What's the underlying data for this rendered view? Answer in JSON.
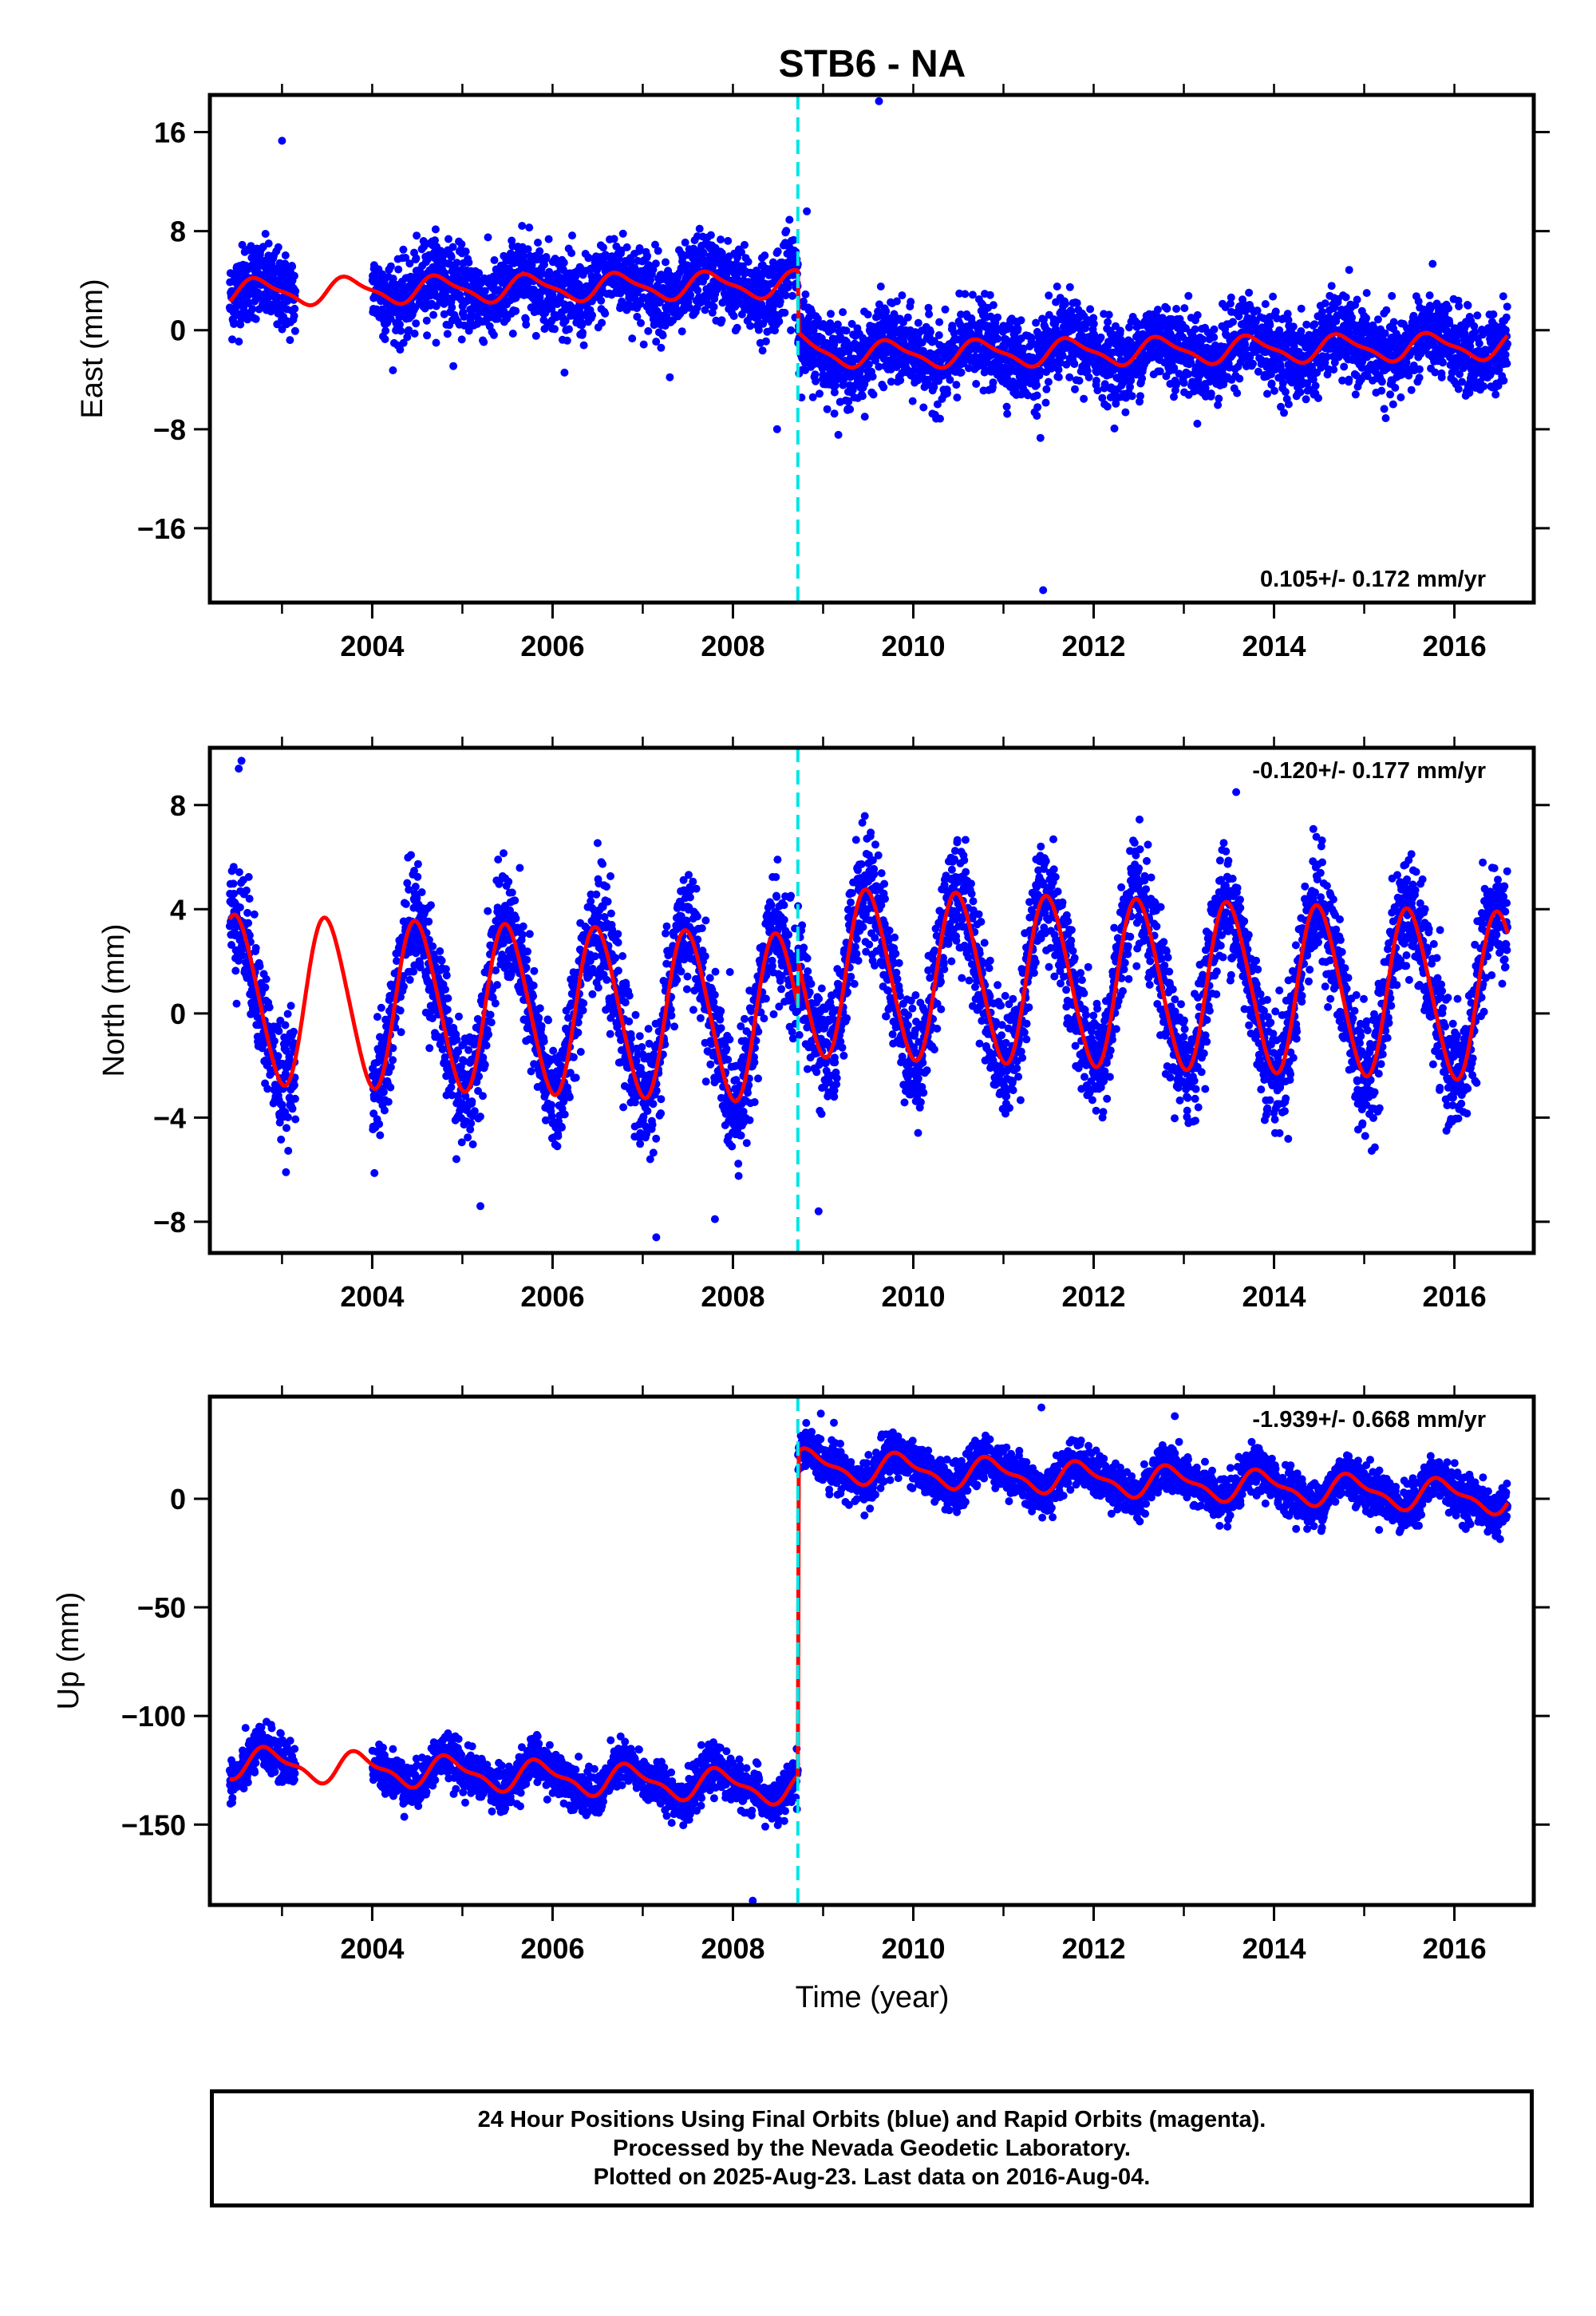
{
  "title": "STB6 - NA",
  "xlabel": "Time (year)",
  "caption": {
    "line1": "24 Hour Positions Using Final Orbits (blue) and Rapid Orbits (magenta).",
    "line2": "Processed by the Nevada Geodetic Laboratory.",
    "line3": "Plotted on 2025-Aug-23. Last data on 2016-Aug-04."
  },
  "colors": {
    "data": "#0000ff",
    "model": "#ff0000",
    "step_line": "#00e5e5",
    "axis": "#000000"
  },
  "chart_data": [
    {
      "type": "scatter",
      "component": "east",
      "ylabel": "East (mm)",
      "rate_text": "0.105+/- 0.172 mm/yr",
      "rate_position": "bottom-right",
      "xlim": [
        2002.2,
        2016.88
      ],
      "ylim": [
        -22,
        19
      ],
      "yticks": [
        -16,
        -8,
        0,
        8,
        16
      ],
      "xticks": [
        2004,
        2006,
        2008,
        2010,
        2012,
        2014,
        2016
      ],
      "x_range": [
        2002.42,
        2016.59
      ],
      "data_gap": [
        2003.15,
        2004.0
      ],
      "step_epoch": 2008.72,
      "model": {
        "pre_offset": 3.8,
        "post_offset": -2.0,
        "rate": 0.105,
        "annual_amp": 1.0,
        "annual_phase": 0.5,
        "semiannual_amp": 0.3,
        "step_decay": 0.8
      },
      "noise_sigma": 1.6,
      "outliers": [
        [
          2003.0,
          15.3
        ],
        [
          2009.62,
          18.5
        ],
        [
          2008.82,
          9.6
        ],
        [
          2011.44,
          -21.0
        ],
        [
          2011.41,
          -8.7
        ],
        [
          2008.49,
          -8.0
        ],
        [
          2004.12,
          -0.5
        ],
        [
          2004.9,
          -2.9
        ],
        [
          2007.3,
          -3.8
        ]
      ]
    },
    {
      "type": "scatter",
      "component": "north",
      "ylabel": "North (mm)",
      "rate_text": "-0.120+/- 0.177 mm/yr",
      "rate_position": "top-right",
      "xlim": [
        2002.2,
        2016.88
      ],
      "ylim": [
        -9.2,
        10.2
      ],
      "yticks": [
        -8,
        -4,
        0,
        4,
        8
      ],
      "xticks": [
        2004,
        2006,
        2008,
        2010,
        2012,
        2014,
        2016
      ],
      "x_range": [
        2002.42,
        2016.59
      ],
      "data_gap": [
        2003.15,
        2004.0
      ],
      "step_epoch": 2008.72,
      "model": {
        "pre_offset": -0.3,
        "post_offset": 1.5,
        "rate": -0.12,
        "annual_amp": 3.2,
        "annual_phase": 0.25,
        "semiannual_amp": 0.3,
        "step_decay": 0.0
      },
      "noise_sigma": 1.1,
      "outliers": [
        [
          2002.55,
          9.7
        ],
        [
          2002.52,
          9.4
        ],
        [
          2013.58,
          8.5
        ],
        [
          2007.15,
          -8.6
        ],
        [
          2008.95,
          -7.6
        ],
        [
          2005.2,
          -7.4
        ],
        [
          2007.8,
          -7.9
        ]
      ]
    },
    {
      "type": "scatter",
      "component": "up",
      "ylabel": "Up (mm)",
      "rate_text": "-1.939+/- 0.668 mm/yr",
      "rate_position": "top-right",
      "xlim": [
        2002.2,
        2016.88
      ],
      "ylim": [
        -187,
        47
      ],
      "yticks": [
        -150,
        -100,
        -50,
        0
      ],
      "xticks": [
        2004,
        2006,
        2008,
        2010,
        2012,
        2014,
        2016
      ],
      "x_range": [
        2002.42,
        2016.59
      ],
      "data_gap": [
        2003.15,
        2004.0
      ],
      "step_epoch": 2008.72,
      "model": {
        "pre_offset": -135,
        "post_offset": 14,
        "rate": -1.939,
        "annual_amp": 6.5,
        "annual_phase": 0.62,
        "semiannual_amp": 2.5,
        "step_decay": 0.0
      },
      "noise_sigma": 5.0,
      "outliers": [
        [
          2011.42,
          42
        ],
        [
          2008.22,
          -185
        ],
        [
          2012.9,
          38
        ],
        [
          2009.12,
          35
        ]
      ]
    }
  ]
}
